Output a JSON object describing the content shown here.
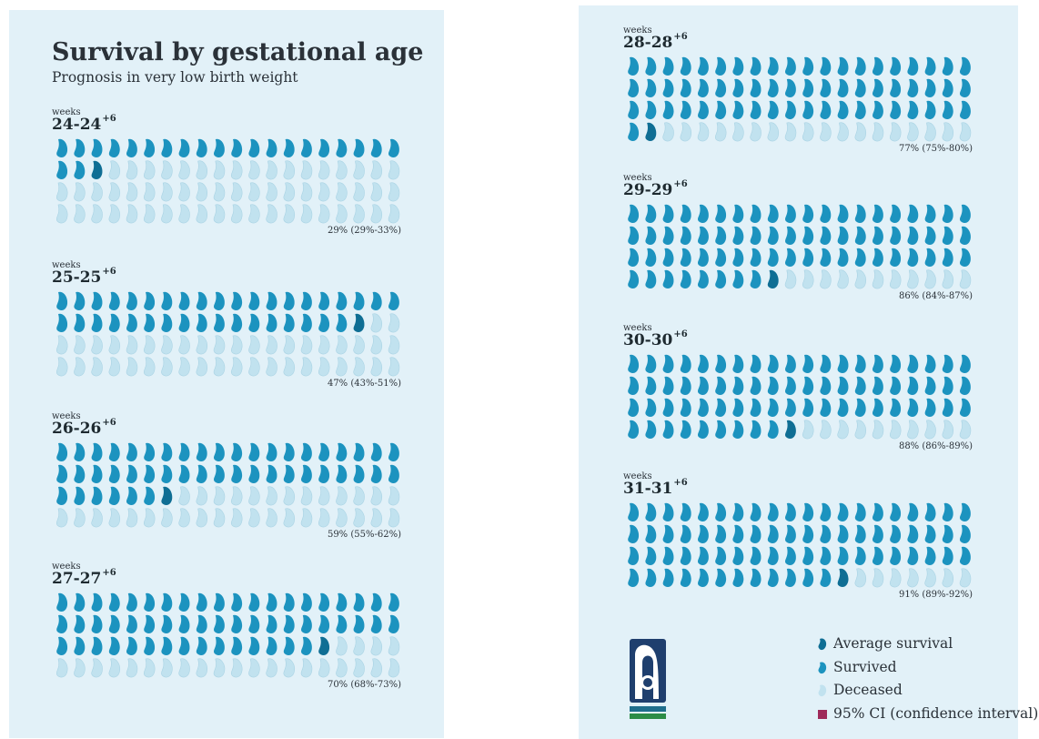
{
  "title": "Survival by gestational age",
  "subtitle": "Prognosis in very low birth weight",
  "weeks_word": "weeks",
  "colors": {
    "panel_bg": "#e2f1f8",
    "survived": "#1c93bf",
    "average": "#0f6e94",
    "deceased": "#c1e2ef",
    "ci": "#9e2a5a"
  },
  "chart_data": {
    "type": "icon-array",
    "title": "Survival by gestational age",
    "subtitle": "Prognosis in very low birth weight",
    "icons_per_group": 80,
    "groups": [
      {
        "label": "24-24",
        "sup": "+6",
        "survival_pct": 29,
        "ci_low": 29,
        "ci_high": 33,
        "stat_text": "29% (29%-33%)"
      },
      {
        "label": "25-25",
        "sup": "+6",
        "survival_pct": 47,
        "ci_low": 43,
        "ci_high": 51,
        "stat_text": "47% (43%-51%)"
      },
      {
        "label": "26-26",
        "sup": "+6",
        "survival_pct": 59,
        "ci_low": 55,
        "ci_high": 62,
        "stat_text": "59% (55%-62%)"
      },
      {
        "label": "27-27",
        "sup": "+6",
        "survival_pct": 70,
        "ci_low": 68,
        "ci_high": 73,
        "stat_text": "70% (68%-73%)"
      },
      {
        "label": "28-28",
        "sup": "+6",
        "survival_pct": 77,
        "ci_low": 75,
        "ci_high": 80,
        "stat_text": "77% (75%-80%)"
      },
      {
        "label": "29-29",
        "sup": "+6",
        "survival_pct": 86,
        "ci_low": 84,
        "ci_high": 87,
        "stat_text": "86% (84%-87%)"
      },
      {
        "label": "30-30",
        "sup": "+6",
        "survival_pct": 88,
        "ci_low": 86,
        "ci_high": 89,
        "stat_text": "88% (86%-89%)"
      },
      {
        "label": "31-31",
        "sup": "+6",
        "survival_pct": 91,
        "ci_low": 89,
        "ci_high": 92,
        "stat_text": "91% (89%-92%)"
      }
    ]
  },
  "legend": {
    "average": "Average survival",
    "survived": "Survived",
    "deceased": "Deceased",
    "ci": "95% CI (confidence interval)"
  }
}
